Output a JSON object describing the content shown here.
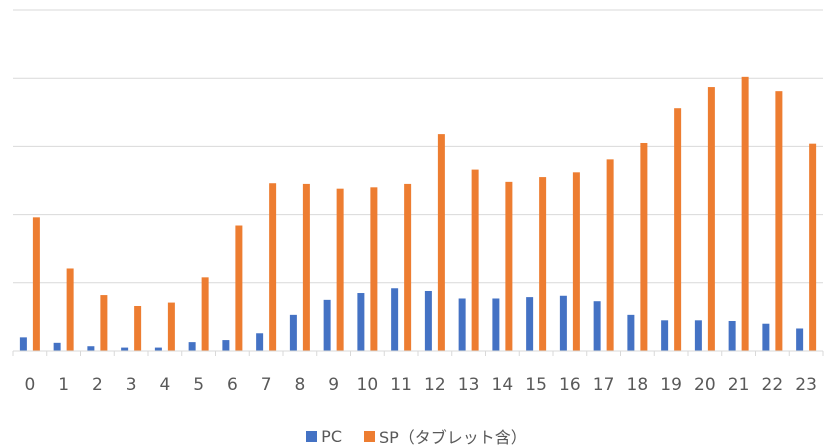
{
  "chart_data": {
    "type": "bar",
    "title": "",
    "xlabel": "",
    "ylabel": "",
    "ylim": [
      0,
      5
    ],
    "grid": true,
    "y_tick_labels_shown": false,
    "legend_position": "bottom",
    "categories": [
      "0",
      "1",
      "2",
      "3",
      "4",
      "5",
      "6",
      "7",
      "8",
      "9",
      "10",
      "11",
      "12",
      "13",
      "14",
      "15",
      "16",
      "17",
      "18",
      "19",
      "20",
      "21",
      "22",
      "23"
    ],
    "series": [
      {
        "name": "PC",
        "color": "#4472c4",
        "values": [
          0.2,
          0.12,
          0.07,
          0.05,
          0.05,
          0.13,
          0.16,
          0.26,
          0.53,
          0.75,
          0.85,
          0.92,
          0.88,
          0.77,
          0.77,
          0.79,
          0.81,
          0.73,
          0.53,
          0.45,
          0.45,
          0.44,
          0.4,
          0.33
        ]
      },
      {
        "name": "SP（タブレット含）",
        "color": "#ed7d31",
        "values": [
          1.96,
          1.21,
          0.82,
          0.66,
          0.71,
          1.08,
          1.84,
          2.46,
          2.45,
          2.38,
          2.4,
          2.45,
          3.18,
          2.66,
          2.48,
          2.55,
          2.62,
          2.81,
          3.05,
          3.56,
          3.87,
          4.02,
          3.81,
          3.04
        ]
      }
    ]
  }
}
